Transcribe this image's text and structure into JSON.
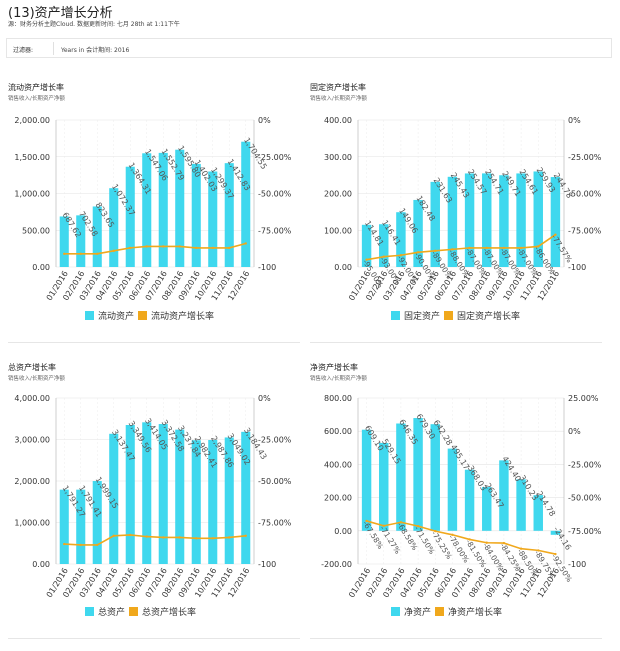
{
  "page": {
    "title": "(13)资产增长分析",
    "subtitle": "源：财务分析主题Cloud. 数据更新时间: 七月 28th at 1:11下午",
    "filter": {
      "label": "过滤器:",
      "value": "Years in 会计期间: 2016"
    }
  },
  "colors": {
    "bar": "#3fd8ee",
    "line": "#f0a81c",
    "axis": "#cccccc",
    "text": "#333333"
  },
  "chart_data": [
    {
      "type": "bar",
      "title": "流动资产增长率",
      "subtitle": "销售收入/长期资产净额",
      "categories": [
        "01/2016",
        "02/2016",
        "03/2016",
        "04/2016",
        "05/2016",
        "06/2016",
        "07/2016",
        "08/2016",
        "09/2016",
        "10/2016",
        "11/2016",
        "12/2016"
      ],
      "bar_series": {
        "name": "流动资产",
        "values": [
          687.62,
          702.58,
          823.65,
          1072.37,
          1364.31,
          1547.06,
          1552.79,
          1595.8,
          1402.03,
          1299.37,
          1412.83,
          1704.55
        ]
      },
      "line_series": {
        "name": "流动资产增长率",
        "values": [
          -91,
          -91,
          -91,
          -89,
          -87,
          -86,
          -86,
          -86,
          -87,
          -87,
          -87,
          -84
        ]
      },
      "ylim": [
        0,
        2000
      ],
      "y_ticks": [
        "0.00",
        "500.00",
        "1,000.00",
        "1,500.00",
        "2,000.00"
      ],
      "y2lim": [
        -100,
        0
      ],
      "y2_ticks": [
        "-100",
        "-75.00%",
        "-50.00%",
        "-25.00%",
        "0%"
      ],
      "bar_labels": [
        "687.62",
        "702.58",
        "823.65",
        "1,072.37",
        "1,364.31",
        "1,547.06",
        "1,552.79",
        "1,595.80",
        "1,402.03",
        "1,299.37",
        "1,412.83",
        "1,704.55"
      ],
      "line_labels": []
    },
    {
      "type": "bar",
      "title": "固定资产增长率",
      "subtitle": "销售收入/长期资产净额",
      "categories": [
        "01/2016",
        "02/2016",
        "03/2016",
        "04/2016",
        "05/2016",
        "06/2016",
        "07/2016",
        "08/2016",
        "09/2016",
        "10/2016",
        "11/2016",
        "12/2016"
      ],
      "bar_series": {
        "name": "固定资产",
        "values": [
          114.81,
          116.41,
          149.06,
          182.48,
          231.63,
          245.43,
          254.57,
          254.71,
          249.71,
          254.61,
          259.93,
          244.78
        ]
      },
      "line_series": {
        "name": "固定资产增长率",
        "values": [
          -95,
          -93,
          -92,
          -90,
          -89,
          -88,
          -87,
          -87,
          -87,
          -87,
          -86,
          -78
        ]
      },
      "ylim": [
        0,
        400
      ],
      "y_ticks": [
        "0.00",
        "100.00",
        "200.00",
        "300.00",
        "400.00"
      ],
      "y2lim": [
        -100,
        0
      ],
      "y2_ticks": [
        "-100",
        "-75.00%",
        "-50.00%",
        "-25.00%",
        "0%"
      ],
      "bar_labels": [
        "114.81",
        "116.41",
        "149.06",
        "182.48",
        "231.63",
        "245.43",
        "254.57",
        "254.71",
        "249.71",
        "254.61",
        "259.93",
        "244.78"
      ],
      "line_labels": [
        "-95.00%",
        "-93.00%",
        "-92.00%",
        "-90.00%",
        "-89.00%",
        "-88.00%",
        "-87.00%",
        "-87.00%",
        "-87.00%",
        "-87.00%",
        "-86.00%",
        "-77.57%"
      ]
    },
    {
      "type": "bar",
      "title": "总资产增长率",
      "subtitle": "销售收入/长期资产净额",
      "categories": [
        "01/2016",
        "02/2016",
        "03/2016",
        "04/2016",
        "05/2016",
        "06/2016",
        "07/2016",
        "08/2016",
        "09/2016",
        "10/2016",
        "11/2016",
        "12/2016"
      ],
      "bar_series": {
        "name": "总资产",
        "values": [
          1791.27,
          1791.41,
          1999.15,
          3137.47,
          3349.56,
          3414.05,
          3372.58,
          3237.84,
          2982.41,
          2987.86,
          3049.02,
          3184.43
        ]
      },
      "line_series": {
        "name": "总资产增长率",
        "values": [
          -88,
          -88.5,
          -88.5,
          -83,
          -82.5,
          -83.5,
          -84,
          -84,
          -84.5,
          -84.5,
          -84,
          -83
        ]
      },
      "ylim": [
        0,
        4000
      ],
      "y_ticks": [
        "0.00",
        "1,000.00",
        "2,000.00",
        "3,000.00",
        "4,000.00"
      ],
      "y2lim": [
        -100,
        0
      ],
      "y2_ticks": [
        "-100",
        "-75.00%",
        "-50.00%",
        "-25.00%",
        "0%"
      ],
      "bar_labels": [
        "1,791.27",
        "1,791.41",
        "1,999.15",
        "3,137.47",
        "3,349.56",
        "3,414.05",
        "3,372.58",
        "3,237.84",
        "2,982.41",
        "2,987.86",
        "3,049.02",
        "3,184.43"
      ],
      "line_labels": []
    },
    {
      "type": "bar",
      "title": "净资产增长率",
      "subtitle": "销售收入/长期资产净额",
      "categories": [
        "01/2016",
        "02/2016",
        "03/2016",
        "04/2016",
        "05/2016",
        "06/2016",
        "07/2016",
        "08/2016",
        "09/2016",
        "10/2016",
        "11/2016",
        "12/2016"
      ],
      "bar_series": {
        "name": "净资产",
        "values": [
          609.1,
          529.15,
          646.35,
          679.3,
          642.28,
          495.17,
          368.03,
          263.47,
          424.4,
          310.23,
          214.78,
          -24.16
        ]
      },
      "line_series": {
        "name": "净资产增长率",
        "values": [
          -67.58,
          -71.27,
          -68.58,
          -71.5,
          -75.25,
          -78,
          -81.5,
          -84,
          -84.25,
          -88.5,
          -89.75,
          -92.5
        ]
      },
      "ylim": [
        -200,
        800
      ],
      "y_ticks": [
        "-200.00",
        "0.00",
        "200.00",
        "400.00",
        "600.00",
        "800.00"
      ],
      "y2lim": [
        -100,
        25
      ],
      "y2_ticks": [
        "-100",
        "-75.00%",
        "-50.00%",
        "-25.00%",
        "0%",
        "25.00%"
      ],
      "bar_labels": [
        "609.10",
        "529.15",
        "646.35",
        "679.30",
        "642.28",
        "495.17",
        "368.03",
        "263.47",
        "424.40",
        "310.23",
        "214.78",
        "-24.16"
      ],
      "line_labels": [
        "-67.58%",
        "-71.27%",
        "-68.58%",
        "-71.50%",
        "-75.25%",
        "-78.00%",
        "-81.50%",
        "-84.00%",
        "-84.25%",
        "-88.50%",
        "-89.75%",
        "-92.50%"
      ]
    }
  ]
}
